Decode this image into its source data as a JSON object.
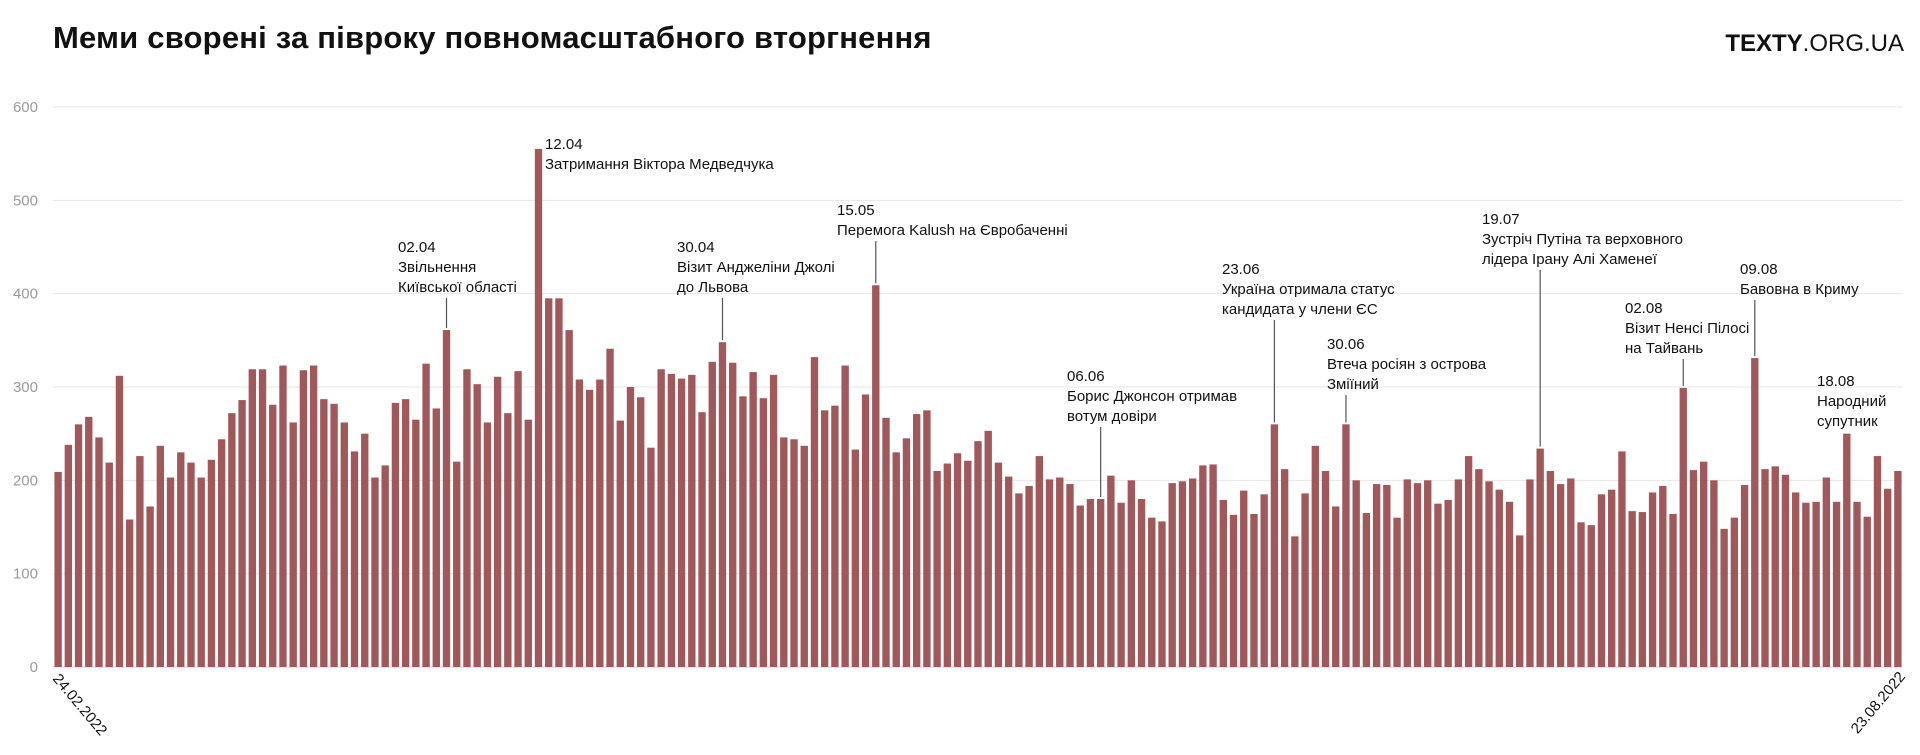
{
  "header": {
    "title": "Меми сворені за півроку повномасштабного вторгнення",
    "brand_bold": "TEXTY",
    "brand_rest": ".ORG.UA"
  },
  "chart_data": {
    "type": "bar",
    "title": "Меми сворені за півроку повномасштабного вторгнення",
    "x_start_label": "24.02.2022",
    "x_end_label": "23.08.2022",
    "ylim": [
      0,
      600
    ],
    "yticks": [
      0,
      100,
      200,
      300,
      400,
      500,
      600
    ],
    "grid": true,
    "bar_color": "#a0585a",
    "values": [
      209,
      238,
      260,
      268,
      246,
      219,
      312,
      158,
      226,
      172,
      237,
      203,
      230,
      219,
      203,
      222,
      244,
      272,
      286,
      319,
      319,
      281,
      323,
      262,
      318,
      323,
      287,
      282,
      262,
      231,
      250,
      203,
      216,
      283,
      287,
      265,
      325,
      277,
      361,
      220,
      319,
      303,
      262,
      311,
      272,
      317,
      265,
      555,
      395,
      395,
      361,
      308,
      297,
      308,
      341,
      264,
      300,
      289,
      235,
      319,
      314,
      309,
      313,
      273,
      327,
      348,
      326,
      290,
      316,
      288,
      313,
      246,
      244,
      237,
      332,
      275,
      280,
      323,
      233,
      292,
      409,
      267,
      230,
      245,
      271,
      275,
      210,
      218,
      229,
      221,
      242,
      253,
      219,
      204,
      186,
      194,
      226,
      201,
      203,
      196,
      173,
      180,
      180,
      205,
      176,
      200,
      180,
      160,
      156,
      197,
      199,
      202,
      216,
      217,
      179,
      163,
      189,
      164,
      185,
      260,
      212,
      140,
      186,
      237,
      210,
      172,
      260,
      200,
      165,
      196,
      195,
      160,
      201,
      197,
      200,
      175,
      179,
      201,
      226,
      212,
      199,
      190,
      177,
      141,
      201,
      234,
      210,
      196,
      202,
      155,
      152,
      185,
      190,
      231,
      167,
      166,
      187,
      194,
      164,
      299,
      211,
      220,
      200,
      148,
      160,
      195,
      331,
      212,
      215,
      206,
      187,
      176,
      177,
      203,
      177,
      250,
      177,
      161,
      226,
      191,
      210
    ],
    "annotations": [
      {
        "date": "02.04",
        "text": [
          "Звільнення",
          "Київської області"
        ],
        "index": 38,
        "value": 361
      },
      {
        "date": "12.04",
        "text": [
          "Затримання Віктора Медведчука"
        ],
        "index": 47,
        "value": 555
      },
      {
        "date": "30.04",
        "text": [
          "Візит Анджеліни Джолі",
          "до Львова"
        ],
        "index": 65,
        "value": 348
      },
      {
        "date": "15.05",
        "text": [
          "Перемога Kalush на Євробаченні"
        ],
        "index": 80,
        "value": 409
      },
      {
        "date": "06.06",
        "text": [
          "Борис Джонсон отримав",
          "вотум довіри"
        ],
        "index": 102,
        "value": 180
      },
      {
        "date": "23.06",
        "text": [
          "Україна отримала статус",
          "кандидата у члени ЄС"
        ],
        "index": 119,
        "value": 260
      },
      {
        "date": "30.06",
        "text": [
          "Втеча росіян з острова",
          "Зміїний"
        ],
        "index": 126,
        "value": 260
      },
      {
        "date": "19.07",
        "text": [
          "Зустріч Путіна та верховного",
          "лідера Ірану Алі Хаменеї"
        ],
        "index": 145,
        "value": 234
      },
      {
        "date": "02.08",
        "text": [
          "Візит Ненсі Пілосі",
          "на Тайвань"
        ],
        "index": 159,
        "value": 299
      },
      {
        "date": "09.08",
        "text": [
          "Бавовна в Криму"
        ],
        "index": 166,
        "value": 331
      },
      {
        "date": "18.08",
        "text": [
          "Народний",
          "супутник"
        ],
        "index": 175,
        "value": 250
      }
    ]
  }
}
